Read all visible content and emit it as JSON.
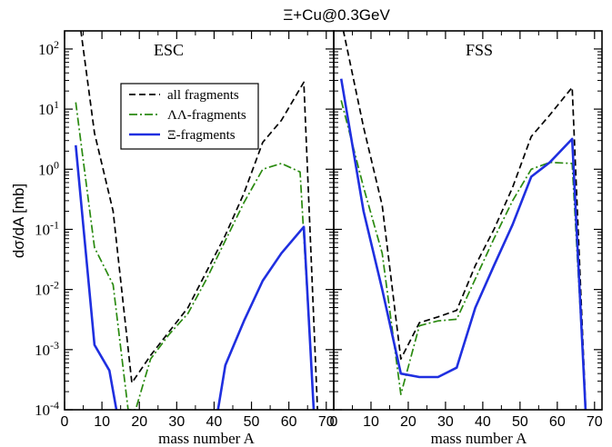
{
  "title": "Ξ+Cu@0.3GeV",
  "ylabel": "dσ/dA [mb]",
  "colors": {
    "all_fragments": "#000000",
    "LL_fragments": "#2a8a10",
    "Xi_fragments": "#1f2fe0"
  },
  "legend": {
    "placement": "upper-left of ESC panel",
    "entries": [
      {
        "key": "all",
        "label": "all fragments",
        "style": "dashed"
      },
      {
        "key": "ll",
        "label": "ΛΛ-fragments",
        "style": "dash-dot"
      },
      {
        "key": "xi",
        "label": "Ξ-fragments",
        "style": "solid"
      }
    ]
  },
  "chart_data": [
    {
      "type": "line",
      "panel_label": "ESC",
      "xlabel": "mass number A",
      "xlim": [
        0,
        72
      ],
      "ylim": [
        0.0001,
        200
      ],
      "yscale": "log",
      "xticks": [
        0,
        10,
        20,
        30,
        40,
        50,
        60,
        70
      ],
      "yticks": [
        {
          "value": 0.0001,
          "base": "10",
          "exp": "-4"
        },
        {
          "value": 0.001,
          "base": "10",
          "exp": "-3"
        },
        {
          "value": 0.01,
          "base": "10",
          "exp": "-2"
        },
        {
          "value": 0.1,
          "base": "10",
          "exp": "-1"
        },
        {
          "value": 1,
          "base": "10",
          "exp": "0"
        },
        {
          "value": 10,
          "base": "10",
          "exp": "1"
        },
        {
          "value": 100,
          "base": "10",
          "exp": "2"
        }
      ],
      "series": [
        {
          "name": "all fragments",
          "key": "all",
          "points": [
            [
              4,
              300
            ],
            [
              8,
              4
            ],
            [
              13,
              0.2
            ],
            [
              18,
              0.00028
            ],
            [
              23,
              0.0008
            ],
            [
              28,
              0.002
            ],
            [
              33,
              0.005
            ],
            [
              38,
              0.02
            ],
            [
              43,
              0.08
            ],
            [
              48,
              0.4
            ],
            [
              53,
              2.8
            ],
            [
              58,
              6.5
            ],
            [
              64,
              28
            ],
            [
              68,
              3e-05
            ]
          ]
        },
        {
          "name": "ΛΛ-fragments",
          "key": "ll",
          "points": [
            [
              3,
              13
            ],
            [
              8,
              0.05
            ],
            [
              13,
              0.012
            ],
            [
              17,
              0.0001
            ],
            [
              19,
              0.0001
            ],
            [
              23,
              0.0007
            ],
            [
              28,
              0.0018
            ],
            [
              33,
              0.004
            ],
            [
              38,
              0.015
            ],
            [
              43,
              0.065
            ],
            [
              48,
              0.28
            ],
            [
              53,
              1.0
            ],
            [
              58,
              1.25
            ],
            [
              63,
              0.9
            ],
            [
              67,
              5e-05
            ]
          ]
        },
        {
          "name": "Ξ-fragments",
          "key": "xi",
          "points": [
            [
              3,
              2.5
            ],
            [
              8,
              0.0012
            ],
            [
              12,
              0.00045
            ],
            [
              15,
              4e-05
            ],
            [
              40,
              4e-05
            ],
            [
              43,
              0.00055
            ],
            [
              48,
              0.003
            ],
            [
              53,
              0.014
            ],
            [
              58,
              0.04
            ],
            [
              64,
              0.11
            ],
            [
              67,
              4e-05
            ]
          ]
        }
      ]
    },
    {
      "type": "line",
      "panel_label": "FSS",
      "xlabel": "mass number A",
      "xlim": [
        0,
        72
      ],
      "ylim": [
        0.0001,
        200
      ],
      "yscale": "log",
      "xticks": [
        0,
        10,
        20,
        30,
        40,
        50,
        60,
        70
      ],
      "series": [
        {
          "name": "all fragments",
          "key": "all",
          "points": [
            [
              2,
              300
            ],
            [
              8,
              5
            ],
            [
              13,
              0.25
            ],
            [
              18,
              0.0007
            ],
            [
              23,
              0.0028
            ],
            [
              28,
              0.0035
            ],
            [
              33,
              0.0045
            ],
            [
              38,
              0.025
            ],
            [
              43,
              0.1
            ],
            [
              48,
              0.5
            ],
            [
              53,
              3.5
            ],
            [
              58,
              8
            ],
            [
              64,
              23
            ],
            [
              68,
              3e-05
            ]
          ]
        },
        {
          "name": "ΛΛ-fragments",
          "key": "ll",
          "points": [
            [
              2,
              14
            ],
            [
              8,
              0.5
            ],
            [
              13,
              0.04
            ],
            [
              18,
              0.00018
            ],
            [
              23,
              0.0025
            ],
            [
              28,
              0.003
            ],
            [
              33,
              0.0032
            ],
            [
              38,
              0.015
            ],
            [
              43,
              0.07
            ],
            [
              48,
              0.3
            ],
            [
              53,
              1.0
            ],
            [
              58,
              1.3
            ],
            [
              64,
              1.25
            ],
            [
              68,
              4e-05
            ]
          ]
        },
        {
          "name": "Ξ-fragments",
          "key": "xi",
          "points": [
            [
              2,
              32
            ],
            [
              8,
              0.2
            ],
            [
              13,
              0.01
            ],
            [
              18,
              0.0004
            ],
            [
              23,
              0.00035
            ],
            [
              28,
              0.00035
            ],
            [
              33,
              0.0005
            ],
            [
              38,
              0.005
            ],
            [
              43,
              0.025
            ],
            [
              48,
              0.12
            ],
            [
              53,
              0.75
            ],
            [
              58,
              1.3
            ],
            [
              64,
              3.2
            ],
            [
              68,
              3e-05
            ]
          ]
        }
      ]
    }
  ]
}
